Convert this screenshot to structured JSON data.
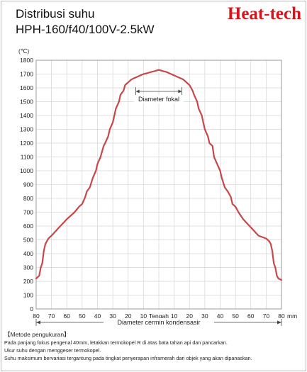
{
  "header": {
    "title_line1": "Distribusi suhu",
    "title_line2": "HPH-160/f40/100V-2.5kW",
    "brand": "Heat-tech"
  },
  "chart_data": {
    "type": "line",
    "title": "Distribusi suhu HPH-160/f40/100V-2.5kW",
    "ylabel": "(℃)",
    "xlabel": "Diameter cermin kondensasir",
    "x_unit": "mm",
    "ylim": [
      0,
      1800
    ],
    "xlim": [
      -80,
      80
    ],
    "yticks": [
      0,
      100,
      200,
      300,
      400,
      500,
      600,
      700,
      800,
      900,
      1000,
      1100,
      1200,
      1300,
      1400,
      1500,
      1600,
      1700,
      1800
    ],
    "xticks": [
      -80,
      -70,
      -60,
      -50,
      -40,
      -30,
      -20,
      -10,
      0,
      10,
      20,
      30,
      40,
      50,
      60,
      70,
      80
    ],
    "xtick_labels": [
      "80",
      "70",
      "60",
      "50",
      "40",
      "30",
      "20",
      "10",
      "",
      "10",
      "20",
      "30",
      "40",
      "50",
      "60",
      "70",
      "80"
    ],
    "center_label": "Tengah",
    "grid": true,
    "focal_annotation": {
      "label": "Diameter fokal",
      "x_start": -15,
      "x_end": 15
    },
    "series": [
      {
        "color": "#c8474a",
        "x": [
          -80,
          -78,
          -77,
          -76,
          -75,
          -74,
          -73,
          -72,
          -70,
          -65,
          -60,
          -55,
          -52,
          -50,
          -48,
          -47,
          -45,
          -43,
          -41,
          -40,
          -38,
          -36,
          -35,
          -33,
          -32,
          -30,
          -29,
          -28,
          -26,
          -25,
          -23,
          -22,
          -20,
          -18,
          -16,
          -14,
          -12,
          -10,
          -8,
          -5,
          -3,
          0,
          3,
          5,
          8,
          10,
          12,
          14,
          16,
          18,
          20,
          22,
          23,
          25,
          26,
          28,
          29,
          30,
          32,
          33,
          35,
          36,
          38,
          40,
          41,
          43,
          45,
          47,
          48,
          50,
          52,
          55,
          60,
          65,
          70,
          72,
          73,
          74,
          75,
          76,
          77,
          78,
          80
        ],
        "values": [
          220,
          240,
          300,
          330,
          420,
          470,
          490,
          510,
          530,
          590,
          650,
          700,
          740,
          760,
          810,
          850,
          880,
          950,
          1000,
          1050,
          1100,
          1180,
          1200,
          1250,
          1300,
          1350,
          1400,
          1450,
          1500,
          1550,
          1580,
          1620,
          1640,
          1660,
          1670,
          1680,
          1690,
          1700,
          1705,
          1715,
          1720,
          1730,
          1720,
          1715,
          1700,
          1690,
          1680,
          1670,
          1660,
          1640,
          1620,
          1580,
          1550,
          1500,
          1450,
          1400,
          1350,
          1300,
          1250,
          1200,
          1180,
          1100,
          1050,
          1000,
          950,
          880,
          850,
          810,
          760,
          740,
          700,
          650,
          590,
          530,
          510,
          490,
          470,
          420,
          330,
          300,
          240,
          220,
          210
        ]
      }
    ]
  },
  "notes": {
    "heading": "【Metode pengukuran】",
    "line1": "Pada panjang fokus pengenal 40mm, letakkan termokopel R di atas bata tahan api dan pancarkan.",
    "line2": "Ukur suhu dengan menggeser termokopel.",
    "line3": "Suhu maksimum bervariasi tergantung pada tingkat penyerapan inframerah dari objek yang akan dipanaskan."
  }
}
